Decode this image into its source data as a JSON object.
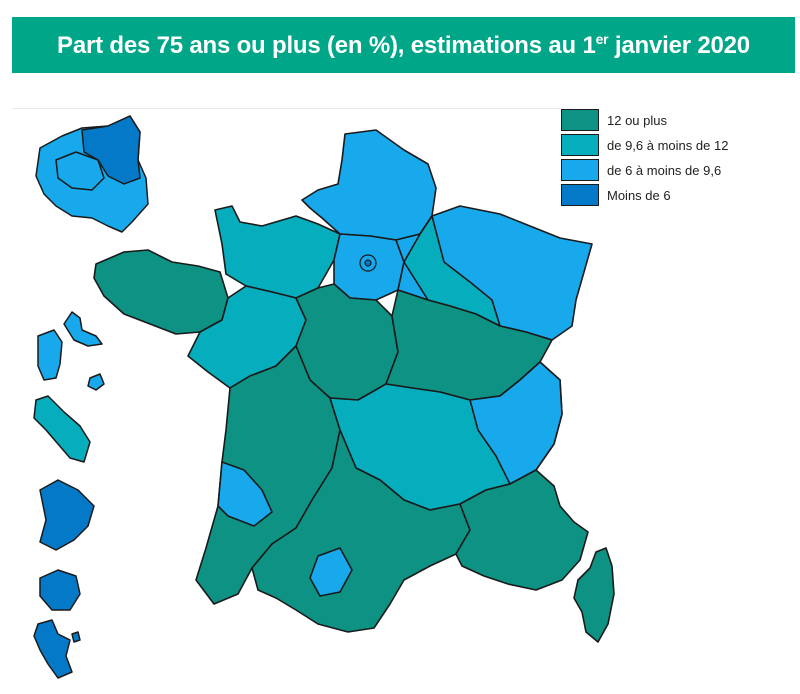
{
  "title": {
    "prefix": "Part des 75 ans ou plus (en %), estimations au 1",
    "superscript": "er",
    "suffix": " janvier 2020"
  },
  "legend": [
    {
      "label": "12 ou plus",
      "color": "#0e9283"
    },
    {
      "label": "de 9,6 à moins de 12",
      "color": "#06adbc"
    },
    {
      "label": "de 6 à moins de 9,6",
      "color": "#17a9ec"
    },
    {
      "label": "Moins de 6",
      "color": "#0479c8"
    }
  ],
  "colors": {
    "header": "#00a688",
    "border": "#1a1a1a"
  }
}
